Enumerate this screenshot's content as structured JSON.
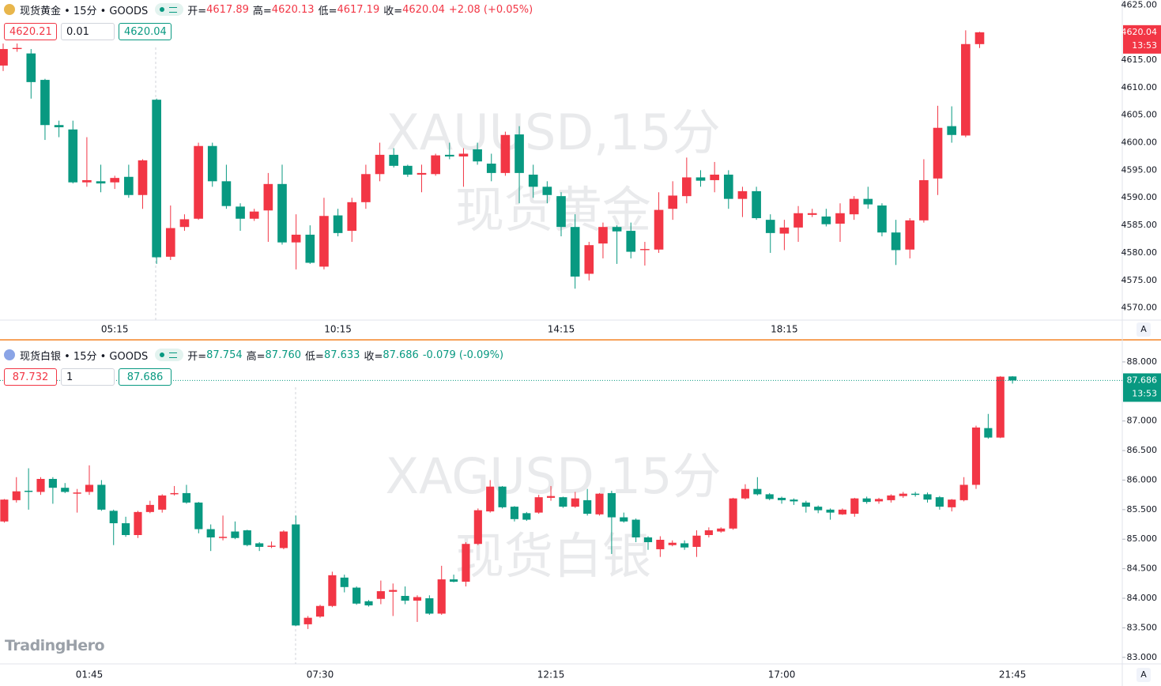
{
  "logo": "TradingHero",
  "chart_data": [
    {
      "type": "candlestick",
      "header": {
        "title": "现货黄金 • 15分 • GOODS",
        "ohlc": [
          {
            "label": "开=",
            "value": "4617.89"
          },
          {
            "label": "高=",
            "value": "4620.13"
          },
          {
            "label": "低=",
            "value": "4617.19"
          },
          {
            "label": "收=",
            "value": "4620.04"
          }
        ],
        "change": "+2.08 (+0.05%)"
      },
      "orders": [
        "4620.21",
        "0.01",
        "4620.04"
      ],
      "watermark": [
        "XAUUSD,15分",
        "现货黄金"
      ],
      "scale_button": "A",
      "up_color": "#f23645",
      "down_color": "#089981",
      "price_line": false,
      "last_price": {
        "value": 4620.04,
        "label": "4620.04"
      },
      "countdown": "13:53",
      "ylim": [
        4567.8,
        4625.9
      ],
      "yticks": [
        {
          "value": 4570,
          "label": "4570.00"
        },
        {
          "value": 4575,
          "label": "4575.00"
        },
        {
          "value": 4580,
          "label": "4580.00"
        },
        {
          "value": 4585,
          "label": "4585.00"
        },
        {
          "value": 4590,
          "label": "4590.00"
        },
        {
          "value": 4595,
          "label": "4595.00"
        },
        {
          "value": 4600,
          "label": "4600.00"
        },
        {
          "value": 4605,
          "label": "4605.00"
        },
        {
          "value": 4610,
          "label": "4610.00"
        },
        {
          "value": 4615,
          "label": "4615.00"
        },
        {
          "value": 4625,
          "label": "4625.00"
        }
      ],
      "categories": [
        null,
        null,
        null,
        null,
        null,
        null,
        null,
        null,
        "05:15",
        null,
        null,
        null,
        null,
        null,
        null,
        null,
        null,
        null,
        null,
        null,
        null,
        null,
        null,
        null,
        "10:15",
        null,
        null,
        null,
        null,
        null,
        null,
        null,
        null,
        null,
        null,
        null,
        null,
        null,
        null,
        null,
        "14:15",
        null,
        null,
        null,
        null,
        null,
        null,
        null,
        null,
        null,
        null,
        null,
        null,
        null,
        null,
        null,
        "18:15",
        null,
        null,
        null,
        null,
        null,
        null,
        null,
        null,
        null,
        null,
        null,
        null,
        null,
        null
      ],
      "ohlc": [
        [
          4614,
          4618,
          4613,
          4617
        ],
        [
          4617,
          4618,
          4616.5,
          4617.2
        ],
        [
          4616.2,
          4617,
          4608,
          4611
        ],
        [
          4611.4,
          4611.6,
          4600.5,
          4603.2
        ],
        [
          4603.2,
          4604,
          4601,
          4602.8
        ],
        [
          4602.4,
          4604,
          4592.6,
          4592.8
        ],
        [
          4592.8,
          4601,
          4592,
          4593.2
        ],
        [
          4593,
          4596,
          4591,
          4592.6
        ],
        [
          4592.8,
          4594,
          4591.6,
          4593.6
        ],
        [
          4593.8,
          4596,
          4590,
          4590.5
        ],
        [
          4590.5,
          4597,
          4588,
          4596.8
        ],
        [
          4607.8,
          4608,
          4578,
          4579.2
        ],
        [
          4579.3,
          4588.6,
          4578.7,
          4584.5
        ],
        [
          4584.7,
          4587,
          4584,
          4586.1
        ],
        [
          4586.2,
          4600,
          4586,
          4599.4
        ],
        [
          4599.4,
          4600,
          4592,
          4593
        ],
        [
          4593,
          4596,
          4588,
          4588.5
        ],
        [
          4588.4,
          4589,
          4584,
          4586.2
        ],
        [
          4586.2,
          4588,
          4585.8,
          4587.5
        ],
        [
          4587.7,
          4594.5,
          4582,
          4592.5
        ],
        [
          4592.5,
          4596,
          4581.5,
          4581.9
        ],
        [
          4581.9,
          4587,
          4577,
          4583.3
        ],
        [
          4583.3,
          4585,
          4578,
          4578.2
        ],
        [
          4577.5,
          4590,
          4577,
          4586.7
        ],
        [
          4586.8,
          4588,
          4583,
          4583.6
        ],
        [
          4584,
          4590,
          4582,
          4589.2
        ],
        [
          4589.2,
          4596,
          4588,
          4594.3
        ],
        [
          4594.3,
          4600,
          4593,
          4597.8
        ],
        [
          4597.8,
          4599,
          4595.5,
          4595.8
        ],
        [
          4595.8,
          4596,
          4593.8,
          4594.2
        ],
        [
          4594.2,
          4596,
          4591,
          4594.5
        ],
        [
          4594.3,
          4598,
          4594,
          4597.7
        ],
        [
          4597.8,
          4600,
          4597,
          4597.5
        ],
        [
          4597.5,
          4599,
          4592,
          4598
        ],
        [
          4598.8,
          4600,
          4596,
          4596.6
        ],
        [
          4596.2,
          4598,
          4593,
          4594.5
        ],
        [
          4594.5,
          4602,
          4594,
          4601.4
        ],
        [
          4601.5,
          4603,
          4589,
          4594.5
        ],
        [
          4594.2,
          4596,
          4590,
          4592
        ],
        [
          4592,
          4593,
          4589,
          4590.5
        ],
        [
          4590.3,
          4591,
          4583,
          4584.7
        ],
        [
          4584.7,
          4587,
          4573.5,
          4575.7
        ],
        [
          4576.2,
          4582,
          4575,
          4581.4
        ],
        [
          4581.7,
          4585.5,
          4579,
          4584.7
        ],
        [
          4584.7,
          4585,
          4578,
          4583.9
        ],
        [
          4584,
          4585.5,
          4579,
          4580.2
        ],
        [
          4580.5,
          4582,
          4577.7,
          4580.7
        ],
        [
          4580.6,
          4591,
          4580,
          4587.8
        ],
        [
          4588,
          4593,
          4586,
          4590.4
        ],
        [
          4590.3,
          4597.3,
          4589,
          4593.7
        ],
        [
          4593.7,
          4595,
          4592,
          4593.1
        ],
        [
          4593.2,
          4596.5,
          4591,
          4594.2
        ],
        [
          4594.2,
          4595,
          4588,
          4589.8
        ],
        [
          4589.8,
          4592,
          4586.5,
          4591.2
        ],
        [
          4591.2,
          4592,
          4586,
          4586.3
        ],
        [
          4586,
          4587,
          4580,
          4583.6
        ],
        [
          4583.5,
          4586,
          4580.5,
          4584.6
        ],
        [
          4584.6,
          4588.5,
          4582,
          4587.2
        ],
        [
          4586.9,
          4588,
          4586.5,
          4587.2
        ],
        [
          4586.6,
          4588,
          4584.8,
          4585.2
        ],
        [
          4585.3,
          4589,
          4582,
          4587.2
        ],
        [
          4587,
          4590.3,
          4586,
          4589.8
        ],
        [
          4589.8,
          4592,
          4588,
          4588.8
        ],
        [
          4588.6,
          4589,
          4583,
          4583.7
        ],
        [
          4583.7,
          4586,
          4577.8,
          4580.5
        ],
        [
          4580.6,
          4586.3,
          4579,
          4585.9
        ],
        [
          4585.9,
          4597,
          4585.5,
          4593.2
        ],
        [
          4593.5,
          4606.7,
          4590.5,
          4602.7
        ],
        [
          4603,
          4606.6,
          4600,
          4601.4
        ],
        [
          4601.3,
          4620.4,
          4601,
          4617.9
        ],
        [
          4617.89,
          4620.13,
          4617.19,
          4620.04
        ]
      ]
    },
    {
      "type": "candlestick",
      "header": {
        "title": "现货白银 • 15分 • GOODS",
        "ohlc": [
          {
            "label": "开=",
            "value": "87.754"
          },
          {
            "label": "高=",
            "value": "87.760"
          },
          {
            "label": "低=",
            "value": "87.633"
          },
          {
            "label": "收=",
            "value": "87.686"
          }
        ],
        "change": "-0.079 (-0.09%)"
      },
      "orders": [
        "87.732",
        "1",
        "87.686"
      ],
      "watermark": [
        "XAGUSD,15分",
        "现货白银"
      ],
      "scale_button": "A",
      "up_color": "#f23645",
      "down_color": "#089981",
      "price_line": true,
      "last_price": {
        "value": 87.686,
        "label": "87.686"
      },
      "countdown": "13:53",
      "ylim": [
        82.89,
        88.28
      ],
      "yticks": [
        {
          "value": 83,
          "label": "83.000"
        },
        {
          "value": 83.5,
          "label": "83.500"
        },
        {
          "value": 84,
          "label": "84.000"
        },
        {
          "value": 84.5,
          "label": "84.500"
        },
        {
          "value": 85,
          "label": "85.000"
        },
        {
          "value": 85.5,
          "label": "85.500"
        },
        {
          "value": 86,
          "label": "86.000"
        },
        {
          "value": 86.5,
          "label": "86.500"
        },
        {
          "value": 87,
          "label": "87.000"
        },
        {
          "value": 88,
          "label": "88.000"
        }
      ],
      "categories": [
        null,
        null,
        null,
        null,
        null,
        null,
        null,
        "01:45",
        null,
        null,
        null,
        null,
        null,
        null,
        null,
        null,
        null,
        null,
        null,
        null,
        null,
        null,
        null,
        null,
        null,
        null,
        "07:30",
        null,
        null,
        null,
        null,
        null,
        null,
        null,
        null,
        null,
        null,
        null,
        null,
        null,
        null,
        null,
        null,
        null,
        null,
        "12:15",
        null,
        null,
        null,
        null,
        null,
        null,
        null,
        null,
        null,
        null,
        null,
        null,
        null,
        null,
        null,
        null,
        null,
        null,
        "17:00",
        null,
        null,
        null,
        null,
        null,
        null,
        null,
        null,
        null,
        null,
        null,
        null,
        null,
        null,
        null,
        null,
        null,
        null,
        "21:45"
      ],
      "ohlc": [
        [
          85.3,
          85.68,
          85.28,
          85.67
        ],
        [
          85.66,
          86.05,
          85.62,
          85.81
        ],
        [
          85.82,
          86.2,
          85.5,
          85.8
        ],
        [
          85.8,
          86.05,
          85.75,
          86.02
        ],
        [
          86.02,
          86.05,
          85.6,
          85.87
        ],
        [
          85.87,
          85.95,
          85.78,
          85.8
        ],
        [
          85.77,
          85.85,
          85.45,
          85.79
        ],
        [
          85.8,
          86.25,
          85.75,
          85.92
        ],
        [
          85.92,
          86.0,
          85.48,
          85.5
        ],
        [
          85.48,
          85.5,
          84.9,
          85.27
        ],
        [
          85.27,
          85.38,
          85.04,
          85.07
        ],
        [
          85.07,
          85.48,
          85.02,
          85.46
        ],
        [
          85.46,
          85.65,
          85.44,
          85.58
        ],
        [
          85.5,
          85.76,
          85.45,
          85.74
        ],
        [
          85.76,
          85.9,
          85.74,
          85.78
        ],
        [
          85.78,
          85.92,
          85.6,
          85.62
        ],
        [
          85.62,
          85.63,
          85.1,
          85.17
        ],
        [
          85.17,
          85.25,
          84.8,
          85.03
        ],
        [
          85.02,
          85.4,
          84.98,
          85.04
        ],
        [
          85.13,
          85.3,
          85.0,
          85.02
        ],
        [
          85.15,
          85.16,
          84.88,
          84.9
        ],
        [
          84.93,
          84.95,
          84.8,
          84.87
        ],
        [
          84.87,
          84.96,
          84.85,
          84.89
        ],
        [
          84.85,
          85.15,
          84.83,
          85.13
        ],
        [
          85.25,
          85.4,
          83.53,
          83.54
        ],
        [
          83.56,
          83.7,
          83.48,
          83.67
        ],
        [
          83.69,
          83.89,
          83.67,
          83.87
        ],
        [
          83.87,
          84.45,
          83.85,
          84.39
        ],
        [
          84.35,
          84.4,
          84.1,
          84.19
        ],
        [
          84.18,
          84.2,
          83.89,
          83.91
        ],
        [
          83.95,
          83.97,
          83.86,
          83.88
        ],
        [
          83.99,
          84.3,
          83.9,
          84.12
        ],
        [
          84.11,
          84.25,
          83.7,
          84.14
        ],
        [
          84.04,
          84.2,
          83.9,
          83.96
        ],
        [
          83.96,
          84.05,
          83.6,
          84.02
        ],
        [
          84.0,
          84.05,
          83.72,
          83.74
        ],
        [
          83.74,
          84.55,
          83.72,
          84.32
        ],
        [
          84.32,
          84.4,
          84.27,
          84.28
        ],
        [
          84.28,
          84.95,
          84.2,
          84.92
        ],
        [
          84.92,
          85.52,
          84.9,
          85.49
        ],
        [
          85.47,
          86.0,
          85.45,
          85.89
        ],
        [
          85.89,
          85.9,
          85.52,
          85.54
        ],
        [
          85.55,
          85.56,
          85.3,
          85.34
        ],
        [
          85.44,
          85.46,
          85.31,
          85.33
        ],
        [
          85.45,
          85.75,
          85.43,
          85.71
        ],
        [
          85.7,
          85.9,
          85.65,
          85.73
        ],
        [
          85.71,
          85.72,
          85.53,
          85.55
        ],
        [
          85.55,
          85.8,
          85.53,
          85.69
        ],
        [
          85.66,
          85.85,
          85.4,
          85.43
        ],
        [
          85.42,
          85.78,
          85.4,
          85.77
        ],
        [
          85.78,
          85.82,
          84.75,
          85.37
        ],
        [
          85.37,
          85.45,
          85.28,
          85.3
        ],
        [
          85.33,
          85.35,
          84.95,
          85.03
        ],
        [
          85.03,
          85.05,
          84.82,
          84.95
        ],
        [
          84.83,
          85.05,
          84.7,
          84.99
        ],
        [
          84.9,
          84.98,
          84.88,
          84.94
        ],
        [
          84.93,
          84.98,
          84.82,
          84.86
        ],
        [
          84.87,
          85.15,
          84.7,
          85.06
        ],
        [
          85.07,
          85.2,
          85.03,
          85.15
        ],
        [
          85.13,
          85.2,
          85.11,
          85.18
        ],
        [
          85.18,
          85.7,
          85.16,
          85.69
        ],
        [
          85.69,
          85.93,
          85.67,
          85.85
        ],
        [
          85.85,
          86.05,
          85.74,
          85.76
        ],
        [
          85.76,
          85.78,
          85.66,
          85.68
        ],
        [
          85.7,
          85.72,
          85.6,
          85.66
        ],
        [
          85.67,
          85.69,
          85.58,
          85.64
        ],
        [
          85.62,
          85.65,
          85.45,
          85.55
        ],
        [
          85.55,
          85.57,
          85.44,
          85.49
        ],
        [
          85.5,
          85.52,
          85.33,
          85.45
        ],
        [
          85.42,
          85.52,
          85.41,
          85.5
        ],
        [
          85.43,
          85.7,
          85.38,
          85.69
        ],
        [
          85.69,
          85.72,
          85.6,
          85.63
        ],
        [
          85.64,
          85.7,
          85.6,
          85.68
        ],
        [
          85.66,
          85.76,
          85.62,
          85.74
        ],
        [
          85.73,
          85.8,
          85.7,
          85.77
        ],
        [
          85.77,
          85.8,
          85.72,
          85.75
        ],
        [
          85.76,
          85.79,
          85.62,
          85.67
        ],
        [
          85.71,
          85.73,
          85.5,
          85.55
        ],
        [
          85.54,
          85.68,
          85.47,
          85.67
        ],
        [
          85.66,
          86.05,
          85.64,
          85.92
        ],
        [
          85.92,
          86.92,
          85.85,
          86.89
        ],
        [
          86.88,
          87.12,
          86.7,
          86.72
        ],
        [
          86.72,
          87.76,
          86.71,
          87.75
        ],
        [
          87.754,
          87.76,
          87.633,
          87.686
        ]
      ]
    }
  ]
}
